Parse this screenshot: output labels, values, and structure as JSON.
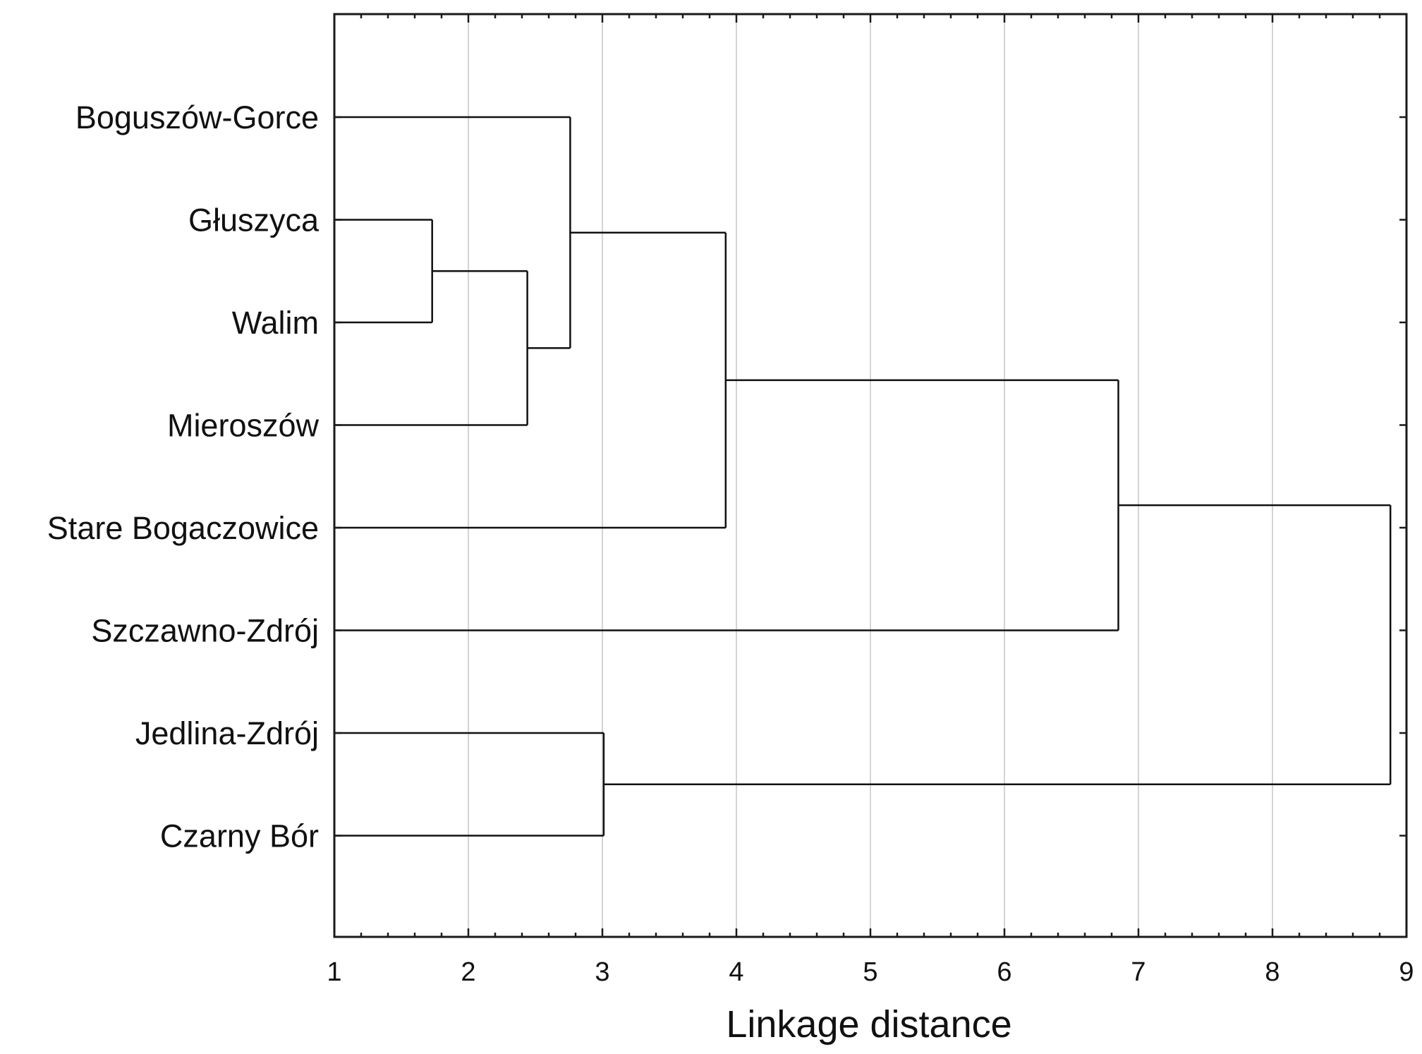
{
  "chart_data": {
    "type": "dendrogram",
    "orientation": "horizontal",
    "title": "",
    "xlabel": "Linkage distance",
    "ylabel": "",
    "xlim": [
      1,
      9
    ],
    "x_ticks": [
      "1",
      "2",
      "3",
      "4",
      "5",
      "6",
      "7",
      "8",
      "9"
    ],
    "grid": "vertical",
    "leaves": [
      "Boguszów-Gorce",
      "Głuszyca",
      "Walim",
      "Mieroszów",
      "Stare Bogaczowice",
      "Szczawno-Zdrój",
      "Jedlina-Zdrój",
      "Czarny Bór"
    ],
    "merges": [
      {
        "id": "m1",
        "left": "Głuszyca",
        "right": "Walim",
        "distance": 1.73
      },
      {
        "id": "m2",
        "left": "m1",
        "right": "Mieroszów",
        "distance": 2.44
      },
      {
        "id": "m3",
        "left": "Boguszów-Gorce",
        "right": "m2",
        "distance": 2.76
      },
      {
        "id": "m4",
        "left": "m3",
        "right": "Stare Bogaczowice",
        "distance": 3.92
      },
      {
        "id": "m5",
        "left": "m4",
        "right": "Szczawno-Zdrój",
        "distance": 6.85
      },
      {
        "id": "m6",
        "left": "Jedlina-Zdrój",
        "right": "Czarny Bór",
        "distance": 3.01
      },
      {
        "id": "m7",
        "left": "m5",
        "right": "m6",
        "distance": 8.88
      }
    ]
  }
}
